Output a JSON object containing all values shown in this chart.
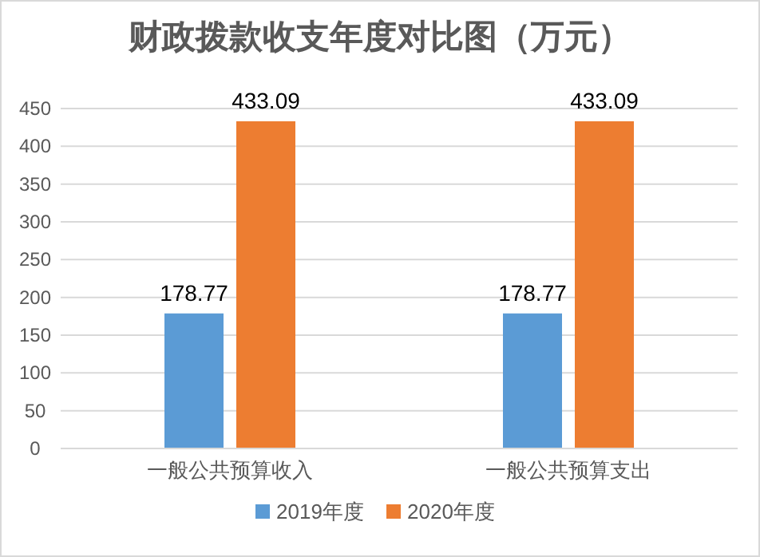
{
  "chart_data": {
    "type": "bar",
    "title": "财政拨款收支年度对比图（万元）",
    "categories": [
      "一般公共预算收入",
      "一般公共预算支出"
    ],
    "series": [
      {
        "name": "2019年度",
        "color": "#5b9bd5",
        "values": [
          178.77,
          178.77
        ]
      },
      {
        "name": "2020年度",
        "color": "#ed7d31",
        "values": [
          433.09,
          433.09
        ]
      }
    ],
    "ylim": [
      0,
      450
    ],
    "yticks": [
      0,
      50,
      100,
      150,
      200,
      250,
      300,
      350,
      400,
      450
    ],
    "grid": "y",
    "legend": "bottom",
    "data_labels": true
  }
}
